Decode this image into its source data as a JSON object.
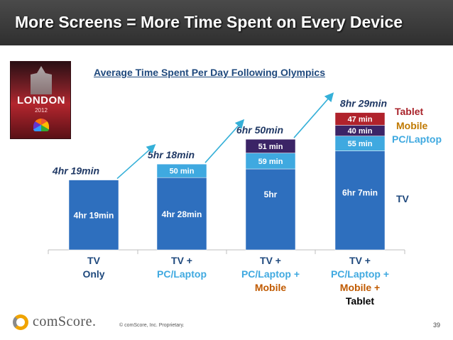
{
  "slide": {
    "title": "More Screens = More Time Spent on Every Device",
    "photo_text": "LONDON",
    "photo_year": "2012",
    "brand": "comScore.",
    "copyright": "© comScore, Inc.    Proprietary.",
    "page_number": "39"
  },
  "colors": {
    "tv": "#2e6fbe",
    "pc_laptop": "#3fa9e0",
    "mobile": "#3b2466",
    "tablet": "#b0222b",
    "header_bg": "#3b3b3b",
    "total_label": "#1f3864",
    "arrow": "#35b0d8",
    "legend_tablet": "#a9242b",
    "legend_mobile": "#c07900",
    "legend_pc": "#3fa9e0",
    "legend_tv": "#1f497d",
    "cat_tv": "#1f497d",
    "cat_pc": "#3fa9e0",
    "cat_mobile": "#c05a00",
    "cat_tablet": "#000000"
  },
  "chart_data": {
    "type": "bar",
    "stacked": true,
    "title": "Average Time Spent Per Day Following Olympics",
    "unit": "minutes",
    "categories": [
      [
        "TV",
        "Only"
      ],
      [
        "TV +",
        "PC/Laptop"
      ],
      [
        "TV +",
        "PC/Laptop +",
        "Mobile"
      ],
      [
        "TV +",
        "PC/Laptop +",
        "Mobile +",
        "Tablet"
      ]
    ],
    "series": [
      {
        "name": "TV",
        "key": "tv",
        "values": [
          259,
          268,
          300,
          367
        ],
        "labels": [
          "4hr 19min",
          "4hr 28min",
          "5hr",
          "6hr 7min"
        ]
      },
      {
        "name": "PC/Laptop",
        "key": "pc_laptop",
        "values": [
          0,
          50,
          59,
          55
        ],
        "labels": [
          "",
          "50 min",
          "59 min",
          "55 min"
        ]
      },
      {
        "name": "Mobile",
        "key": "mobile",
        "values": [
          0,
          0,
          51,
          40
        ],
        "labels": [
          "",
          "",
          "51 min",
          "40 min"
        ]
      },
      {
        "name": "Tablet",
        "key": "tablet",
        "values": [
          0,
          0,
          0,
          47
        ],
        "labels": [
          "",
          "",
          "",
          "47 min"
        ]
      }
    ],
    "totals": [
      "4hr 19min",
      "5hr 18min",
      "6hr 50min",
      "8hr 29min"
    ],
    "legend": [
      "Tablet",
      "Mobile",
      "PC/Laptop",
      "TV"
    ],
    "ylim": [
      0,
      509
    ],
    "legend_position": "right",
    "grid": false
  }
}
